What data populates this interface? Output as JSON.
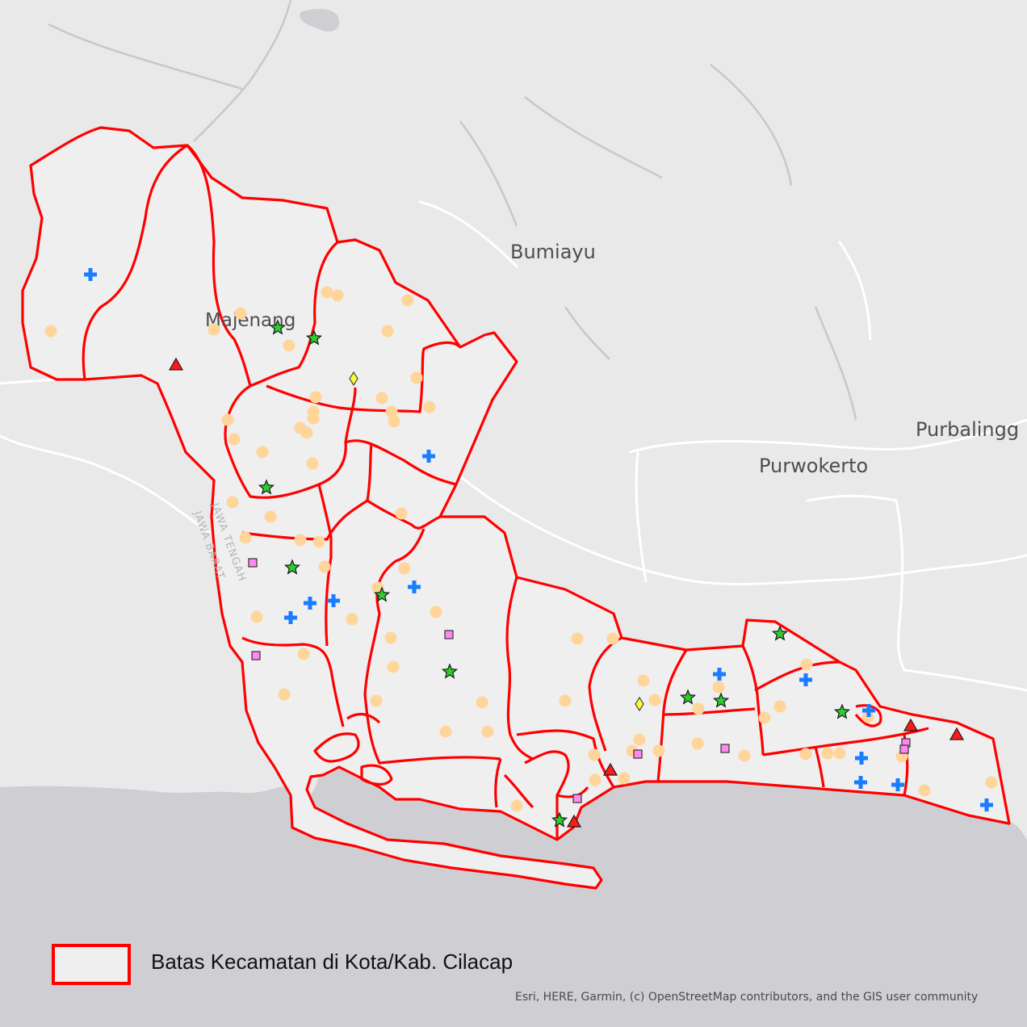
{
  "map": {
    "places": {
      "majenang": "Majenang",
      "bumiayu": "Bumiayu",
      "purwokerto": "Purwokerto",
      "purbalingga": "Purbalingg"
    },
    "province_labels": {
      "jawa_tengah": "JAWA TENGAH",
      "jawa_barat": "JAWA BARAT"
    },
    "colors": {
      "land": "#efeff0",
      "sea": "#cfcfd3",
      "boundary": "#ff0000",
      "roads": "#ffffff",
      "point_dot": "#ffd59a",
      "plus": "#1a7cff",
      "star": "#2ecc2e",
      "triangle": "#ff1a1a",
      "diamond": "#ffff33",
      "square": "#ff88ee"
    },
    "symbols": [
      "dot",
      "blue-plus-icon",
      "green-star-icon",
      "red-triangle-icon",
      "yellow-diamond-icon",
      "pink-square-icon"
    ]
  },
  "legend": {
    "label": "Batas Kecamatan di Kota/Kab. Cilacap"
  },
  "attribution": "Esri, HERE, Garmin, (c) OpenStreetMap contributors, and the GIS user community"
}
